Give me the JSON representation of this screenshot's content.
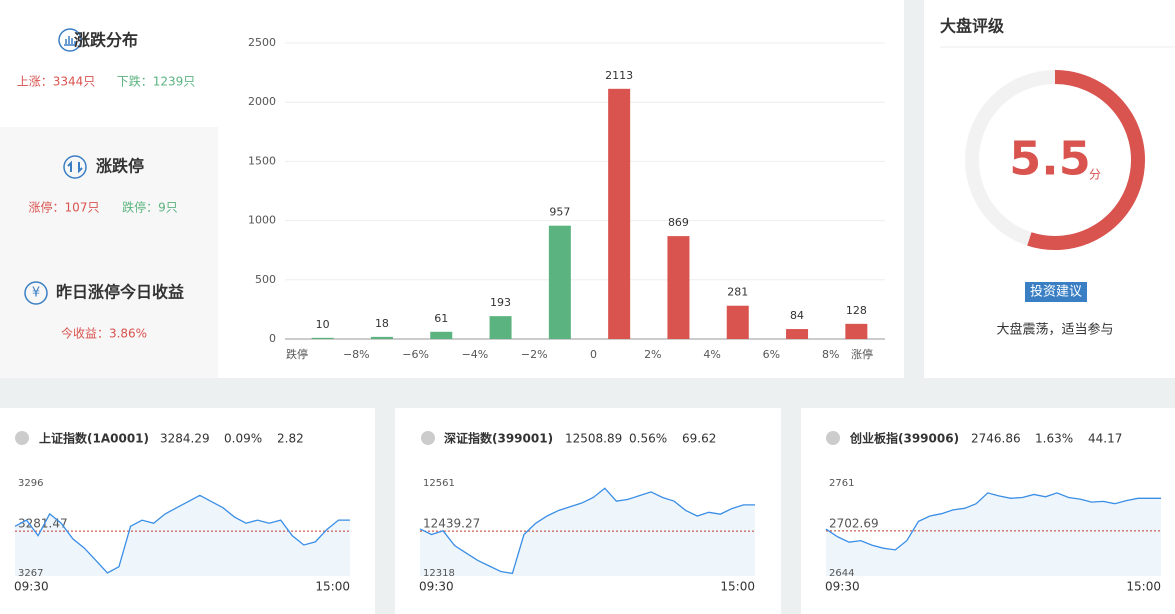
{
  "left_panel": {
    "sections": [
      {
        "title": "涨跌分布",
        "items": [
          "上涨：3344只",
          "下跌：1239只"
        ]
      },
      {
        "title": "涨跌停",
        "items": [
          "涨停：107只",
          "跌停：9只"
        ]
      },
      {
        "title": "昨日涨停今日收益",
        "items": [
          "今收益：3.86%"
        ]
      }
    ]
  },
  "rating": {
    "title": "大盘评级",
    "score": 5.5,
    "unit": "分",
    "lim": [
      0,
      10
    ],
    "color": "#d9534f",
    "button": "投资建议",
    "advice": "大盘震荡，适当参与"
  },
  "chart_data": [
    {
      "type": "bar",
      "x_labels": [
        "跌停",
        "−8%",
        "−6%",
        "−4%",
        "−2%",
        "0",
        "2%",
        "4%",
        "6%",
        "8%",
        "涨停"
      ],
      "values": [
        10,
        18,
        61,
        193,
        957,
        2113,
        869,
        281,
        84,
        128
      ],
      "colors": [
        "#5bb37f",
        "#5bb37f",
        "#5bb37f",
        "#5bb37f",
        "#5bb37f",
        "#d9534f",
        "#d9534f",
        "#d9534f",
        "#d9534f",
        "#d9534f"
      ],
      "ylim": [
        0,
        2500
      ],
      "yticks": [
        0,
        500,
        1000,
        1500,
        2000,
        2500
      ],
      "grid": true
    },
    {
      "type": "line",
      "title": "上证指数(1A0001)",
      "price": 3284.29,
      "pct": "0.09%",
      "change": 2.82,
      "x_labels": [
        "09:30",
        "15:00"
      ],
      "ylim": [
        3267,
        3296
      ],
      "yticks": [
        3267,
        3296
      ],
      "reference": 3281.47,
      "color": "#3a8ee6",
      "values": [
        3283,
        3285,
        3280,
        3287,
        3284,
        3279,
        3276,
        3272,
        3268,
        3270,
        3283,
        3285,
        3284,
        3287,
        3289,
        3291,
        3293,
        3291,
        3289,
        3286,
        3284,
        3285,
        3284,
        3285,
        3280,
        3277,
        3278,
        3282,
        3285,
        3285
      ]
    },
    {
      "type": "line",
      "title": "深证指数(399001)",
      "price": 12508.89,
      "pct": "0.56%",
      "change": 69.62,
      "x_labels": [
        "09:30",
        "15:00"
      ],
      "ylim": [
        12318,
        12561
      ],
      "yticks": [
        12318,
        12561
      ],
      "reference": 12439.27,
      "color": "#3a8ee6",
      "values": [
        12445,
        12430,
        12440,
        12400,
        12380,
        12360,
        12345,
        12330,
        12325,
        12430,
        12460,
        12480,
        12495,
        12505,
        12515,
        12530,
        12555,
        12520,
        12525,
        12535,
        12545,
        12530,
        12520,
        12495,
        12480,
        12490,
        12485,
        12500,
        12510,
        12510
      ]
    },
    {
      "type": "line",
      "title": "创业板指(399006)",
      "price": 2746.86,
      "pct": "1.63%",
      "change": 44.17,
      "x_labels": [
        "09:30",
        "15:00"
      ],
      "ylim": [
        2644,
        2761
      ],
      "yticks": [
        2644,
        2761
      ],
      "reference": 2702.69,
      "color": "#3a8ee6",
      "values": [
        2705,
        2695,
        2688,
        2690,
        2684,
        2680,
        2678,
        2690,
        2715,
        2722,
        2725,
        2730,
        2732,
        2738,
        2752,
        2748,
        2745,
        2746,
        2750,
        2747,
        2752,
        2746,
        2744,
        2740,
        2741,
        2738,
        2742,
        2745,
        2745,
        2745
      ]
    }
  ]
}
